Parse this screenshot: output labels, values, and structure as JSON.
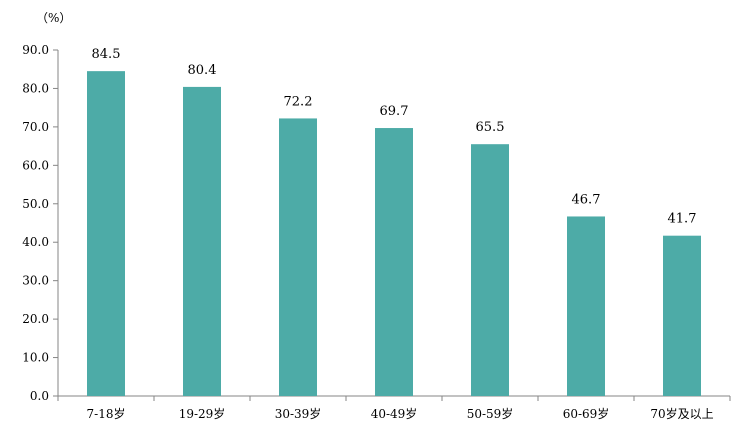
{
  "chart_data": {
    "type": "bar",
    "unit_label": "（%）",
    "categories": [
      "7-18岁",
      "19-29岁",
      "30-39岁",
      "40-49岁",
      "50-59岁",
      "60-69岁",
      "70岁及以上"
    ],
    "values": [
      84.5,
      80.4,
      72.2,
      69.7,
      65.5,
      46.7,
      41.7
    ],
    "data_labels": [
      "84.5",
      "80.4",
      "72.2",
      "69.7",
      "65.5",
      "46.7",
      "41.7"
    ],
    "y_ticks": [
      0,
      10,
      20,
      30,
      40,
      50,
      60,
      70,
      80,
      90
    ],
    "y_tick_labels": [
      "0.0",
      "10.0",
      "20.0",
      "30.0",
      "40.0",
      "50.0",
      "60.0",
      "70.0",
      "80.0",
      "90.0"
    ],
    "ylim": [
      0,
      90
    ],
    "grid": false,
    "legend": "none",
    "colors": {
      "bar": "#4DABA7",
      "axis": "#868686"
    }
  }
}
